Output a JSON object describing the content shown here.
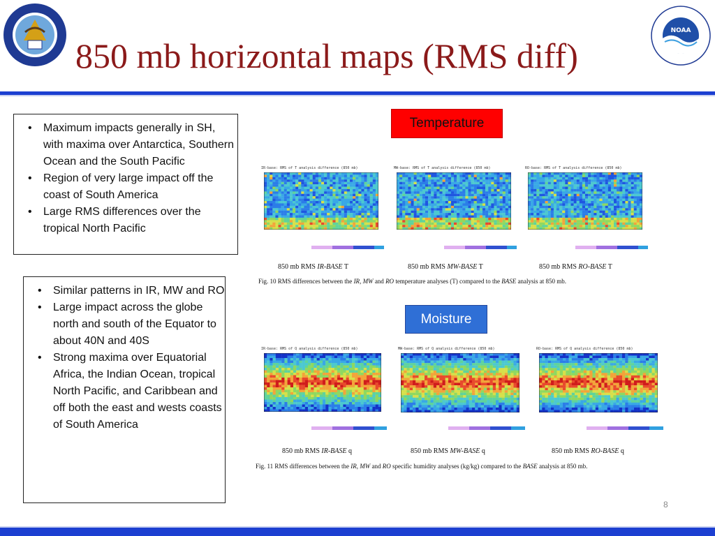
{
  "title": "850 mb horizontal maps (RMS diff)",
  "left_seal": {
    "text": "DEPARTMENT OF COMMERCE • UNITED STATES OF AMERICA"
  },
  "right_seal": {
    "center": "NOAA",
    "text": "NATIONAL OCEANIC AND ATMOSPHERIC ADMINISTRATION • U.S. DEPARTMENT OF COMMERCE"
  },
  "box1": {
    "bullets": [
      "Maximum impacts generally in SH, with maxima over Antarctica, Southern Ocean and the South Pacific",
      "Region of very large impact off the coast of South America",
      "Large RMS differences over the tropical North Pacific"
    ]
  },
  "box2": {
    "bullets": [
      "Similar patterns in IR, MW and RO",
      "Large impact across the globe north and south of the Equator to about 40N and 40S",
      "Strong maxima over Equatorial Africa, the Indian Ocean, tropical North Pacific, and Caribbean and off both the east and wests coasts of South America"
    ]
  },
  "temperature": {
    "label": "Temperature",
    "maps": [
      {
        "title": "IR-base: RMS of T analysis difference (850 mb)",
        "cap_prefix": "850 mb RMS ",
        "cap_italic": "IR-BASE",
        "cap_suffix": " T"
      },
      {
        "title": "MW-base: RMS of T analysis difference (850 mb)",
        "cap_prefix": "850 mb RMS ",
        "cap_italic": "MW-BASE",
        "cap_suffix": " T"
      },
      {
        "title": "RO-base: RMS of T analysis difference (850 mb)",
        "cap_prefix": "850 mb RMS ",
        "cap_italic": "RO-BASE",
        "cap_suffix": " T"
      }
    ],
    "fig": {
      "p1": "Fig. 10 RMS differences between the ",
      "i1": "IR",
      "p2": ", ",
      "i2": "MW",
      "p3": " and ",
      "i3": "RO",
      "p4": " temperature analyses (T) compared to the ",
      "i4": "BASE",
      "p5": " analysis at 850 mb."
    }
  },
  "moisture": {
    "label": "Moisture",
    "maps": [
      {
        "title": "IR-base: RMS of Q analysis difference (850 mb)",
        "cap_prefix": "850 mb RMS ",
        "cap_italic": "IR-BASE",
        "cap_suffix": " q"
      },
      {
        "title": "MW-base: RMS of Q analysis difference (850 mb)",
        "cap_prefix": "850 mb RMS ",
        "cap_italic": "MW-BASE",
        "cap_suffix": " q"
      },
      {
        "title": "RO-base: RMS of Q analysis difference (850 mb)",
        "cap_prefix": "850 mb RMS ",
        "cap_italic": "RO-BASE",
        "cap_suffix": " q"
      }
    ],
    "fig": {
      "p1": "Fig. 11 RMS differences between the ",
      "i1": "IR",
      "p2": ", ",
      "i2": "MW",
      "p3": " and ",
      "i3": "RO",
      "p4": " specific humidity analyses (kg/kg) compared to the ",
      "i4": "BASE",
      "p5": " analysis at 850 mb."
    }
  },
  "page_number": "8",
  "colors": {
    "title": "#8b1a1a",
    "rule_blue": "#1c3fd1",
    "temperature_label_bg": "#ff0000",
    "moisture_label_bg": "#2f6fd6"
  }
}
